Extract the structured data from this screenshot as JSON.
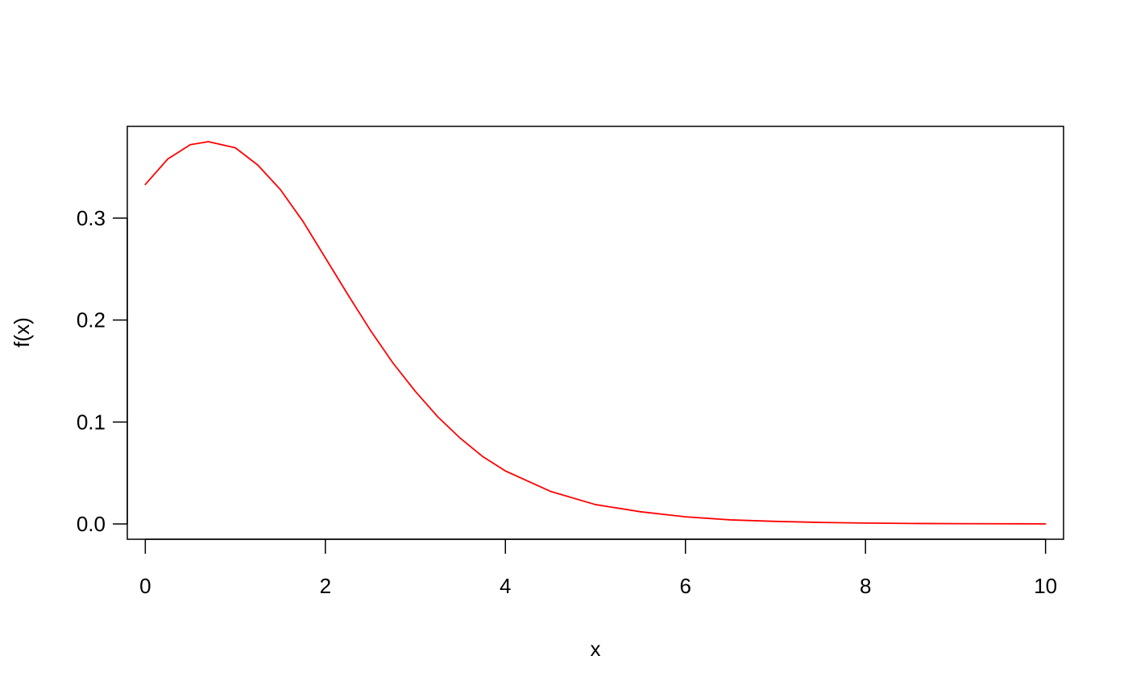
{
  "chart_data": {
    "type": "line",
    "title": "",
    "xlabel": "x",
    "ylabel": "f(x)",
    "xlim": [
      -0.2,
      10.2
    ],
    "ylim": [
      -0.015,
      0.39
    ],
    "x_ticks": [
      {
        "value": 0,
        "label": "0"
      },
      {
        "value": 2,
        "label": "2"
      },
      {
        "value": 4,
        "label": "4"
      },
      {
        "value": 6,
        "label": "6"
      },
      {
        "value": 8,
        "label": "8"
      },
      {
        "value": 10,
        "label": "10"
      }
    ],
    "y_ticks": [
      {
        "value": 0.0,
        "label": "0.0"
      },
      {
        "value": 0.1,
        "label": "0.1"
      },
      {
        "value": 0.2,
        "label": "0.2"
      },
      {
        "value": 0.3,
        "label": "0.3"
      }
    ],
    "grid": false,
    "legend": "none",
    "series": [
      {
        "color": "#ff0000",
        "x": [
          0,
          0.25,
          0.5,
          0.7,
          1.0,
          1.25,
          1.5,
          1.75,
          2.0,
          2.25,
          2.5,
          2.75,
          3.0,
          3.25,
          3.5,
          3.75,
          4.0,
          4.5,
          5.0,
          5.5,
          6.0,
          6.5,
          7.0,
          7.5,
          8.0,
          8.5,
          9.0,
          9.5,
          10.0
        ],
        "y": [
          0.333,
          0.358,
          0.372,
          0.375,
          0.369,
          0.352,
          0.328,
          0.297,
          0.261,
          0.225,
          0.19,
          0.158,
          0.13,
          0.105,
          0.084,
          0.066,
          0.052,
          0.032,
          0.019,
          0.012,
          0.007,
          0.004,
          0.0025,
          0.0015,
          0.0009,
          0.0005,
          0.0003,
          0.0002,
          0.0001
        ]
      }
    ]
  }
}
